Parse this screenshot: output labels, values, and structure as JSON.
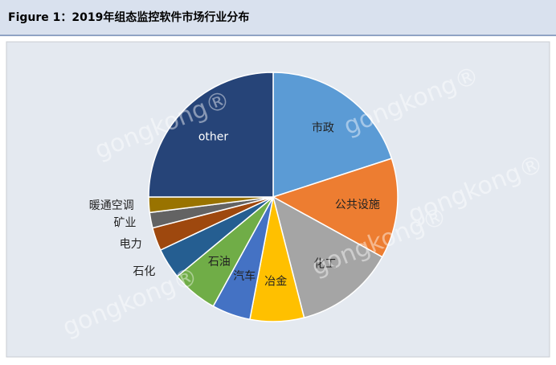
{
  "chart_data": {
    "type": "pie",
    "title": "Figure 1：2019年组态监控软件市场行业分布",
    "watermark": "gongkong®",
    "categories": [
      "市政",
      "公共设施",
      "化工",
      "冶金",
      "汽车",
      "石油",
      "石化",
      "电力",
      "矿业",
      "暖通空调",
      "other"
    ],
    "values": [
      20,
      13,
      13,
      7,
      5,
      6,
      4,
      3,
      2,
      2,
      25
    ],
    "colors": [
      "#5b9bd5",
      "#ed7d31",
      "#a5a5a5",
      "#ffc000",
      "#4472c4",
      "#70ad47",
      "#255e91",
      "#9e480e",
      "#636363",
      "#997300",
      "#264478"
    ]
  }
}
